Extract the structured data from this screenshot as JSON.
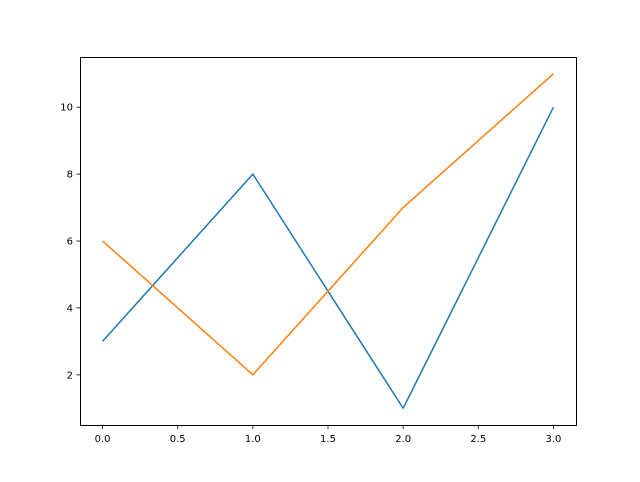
{
  "chart_data": {
    "type": "line",
    "title": "",
    "xlabel": "",
    "ylabel": "",
    "x": [
      0,
      1,
      2,
      3
    ],
    "series": [
      {
        "values": [
          3,
          8,
          1,
          10
        ],
        "color": "#1f77b4"
      },
      {
        "values": [
          6,
          2,
          7,
          11
        ],
        "color": "#ff7f0e"
      }
    ],
    "xlim": [
      -0.15,
      3.15
    ],
    "ylim": [
      0.5,
      11.5
    ],
    "xticks": [
      0.0,
      0.5,
      1.0,
      1.5,
      2.0,
      2.5,
      3.0
    ],
    "xtick_labels": [
      "0.0",
      "0.5",
      "1.0",
      "1.5",
      "2.0",
      "2.5",
      "3.0"
    ],
    "yticks": [
      2,
      4,
      6,
      8,
      10
    ],
    "ytick_labels": [
      "2",
      "4",
      "6",
      "8",
      "10"
    ],
    "grid": false,
    "legend": "none"
  }
}
